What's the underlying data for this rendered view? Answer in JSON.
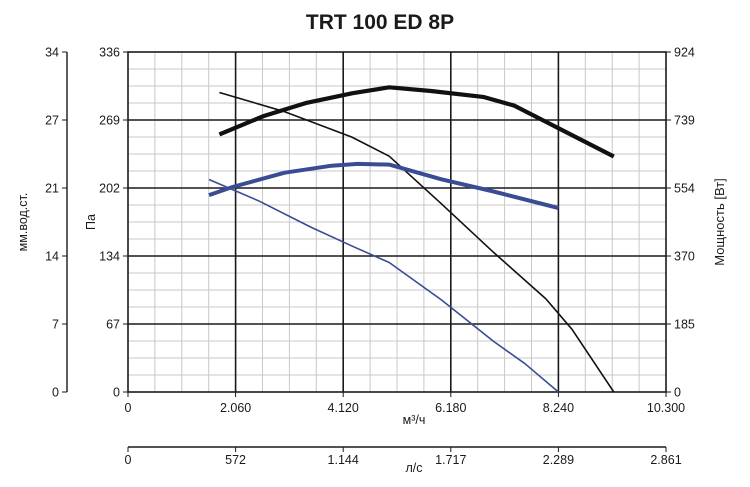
{
  "chart_data": {
    "type": "line",
    "title": "TRT 100 ED 8P",
    "xlabel": "м³/ч",
    "x2label": "л/с",
    "ylabel": "Па",
    "ylabel_left": "мм.вод.ст.",
    "ylabel_right": "Мощность [Вт]",
    "xlim": [
      0,
      10300
    ],
    "ylim": [
      0,
      336
    ],
    "grid": true,
    "x_ticks": [
      "0",
      "2.060",
      "4.120",
      "6.180",
      "8.240",
      "10.300"
    ],
    "x2_ticks": [
      "0",
      "572",
      "1.144",
      "1.717",
      "2.289",
      "2.861"
    ],
    "y_ticks": [
      "0",
      "67",
      "134",
      "202",
      "269",
      "336"
    ],
    "y_ticks_left": [
      "0",
      "7",
      "14",
      "21",
      "27",
      "34"
    ],
    "y_ticks_right": [
      "0",
      "185",
      "370",
      "554",
      "739",
      "924"
    ],
    "series": [
      {
        "role": "pressure",
        "speed": "high",
        "color": "#111111",
        "stroke_weight": "thin",
        "points": [
          [
            1750,
            296
          ],
          [
            3000,
            277
          ],
          [
            4280,
            252
          ],
          [
            5000,
            233
          ],
          [
            6000,
            186
          ],
          [
            7000,
            138
          ],
          [
            8000,
            92
          ],
          [
            8500,
            62
          ],
          [
            9300,
            0
          ]
        ]
      },
      {
        "role": "power",
        "speed": "high",
        "color": "#111111",
        "stroke_weight": "thick",
        "points": [
          [
            1750,
            700
          ],
          [
            2600,
            750
          ],
          [
            3400,
            785
          ],
          [
            4300,
            812
          ],
          [
            5000,
            828
          ],
          [
            5800,
            818
          ],
          [
            6800,
            802
          ],
          [
            7400,
            778
          ],
          [
            8200,
            720
          ],
          [
            9300,
            640
          ]
        ]
      },
      {
        "role": "pressure",
        "speed": "low",
        "color": "#3a4c94",
        "stroke_weight": "thin",
        "points": [
          [
            1550,
            210
          ],
          [
            2500,
            189
          ],
          [
            3500,
            163
          ],
          [
            4300,
            144
          ],
          [
            5000,
            128
          ],
          [
            6000,
            91
          ],
          [
            7000,
            50
          ],
          [
            7600,
            28
          ],
          [
            8240,
            0
          ]
        ]
      },
      {
        "role": "power",
        "speed": "low",
        "color": "#3a4c94",
        "stroke_weight": "thick",
        "points": [
          [
            1550,
            535
          ],
          [
            2000,
            557
          ],
          [
            3000,
            596
          ],
          [
            3900,
            615
          ],
          [
            4400,
            620
          ],
          [
            5000,
            618
          ],
          [
            6000,
            578
          ],
          [
            7000,
            545
          ],
          [
            8240,
            500
          ]
        ]
      }
    ]
  }
}
